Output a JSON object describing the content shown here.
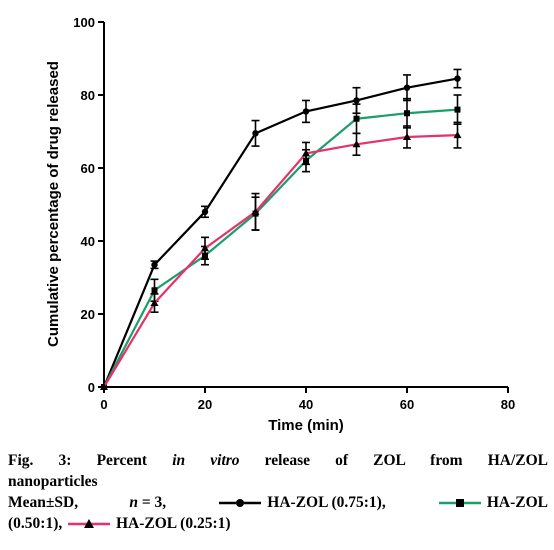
{
  "chart_data": {
    "type": "line",
    "title": "",
    "xlabel": "Time (min)",
    "ylabel": "Cumulative percentage of drug released",
    "xlim": [
      0,
      80
    ],
    "ylim": [
      0,
      100
    ],
    "xticks": [
      "0",
      "20",
      "40",
      "60",
      "80"
    ],
    "yticks": [
      "0",
      "20",
      "40",
      "60",
      "80",
      "100"
    ],
    "grid": false,
    "x": [
      0,
      10,
      20,
      30,
      40,
      50,
      60,
      70
    ],
    "series": [
      {
        "name": "HA-ZOL (0.75:1)",
        "color": "#000000",
        "marker": "circle",
        "values": [
          0,
          33.5,
          48,
          69.5,
          75.5,
          78.5,
          82,
          84.5
        ],
        "errors": [
          0,
          1,
          1.5,
          3.5,
          3,
          3.5,
          3.5,
          2.5
        ]
      },
      {
        "name": "HA-ZOL (0.50:1)",
        "color": "#1a9e6a",
        "marker": "square",
        "values": [
          0,
          26.5,
          36,
          47.5,
          62,
          73.5,
          75,
          76
        ],
        "errors": [
          0,
          3,
          2.5,
          4.5,
          3,
          4,
          4,
          4
        ]
      },
      {
        "name": "HA-ZOL (0.25:1)",
        "color": "#e8306a",
        "marker": "triangle",
        "values": [
          0,
          23,
          38,
          48,
          64,
          66.5,
          68.5,
          69
        ],
        "errors": [
          0,
          2.5,
          3,
          5,
          3,
          3,
          3,
          3.5
        ]
      }
    ]
  },
  "caption": {
    "fig_label": "Fig. 3: Percent",
    "ital_text": "in vitro",
    "rest_line1": "release of ZOL from HA/ZOL",
    "line2": "nanoparticles",
    "stats_prefix": "Mean±SD,",
    "n_label": "n",
    "n_value": "= 3,",
    "legend1": "HA-ZOL (0.75:1),",
    "legend2_part1": "HA-ZOL",
    "legend2_part2": "(0.50:1),",
    "legend3": "HA-ZOL (0.25:1)"
  }
}
